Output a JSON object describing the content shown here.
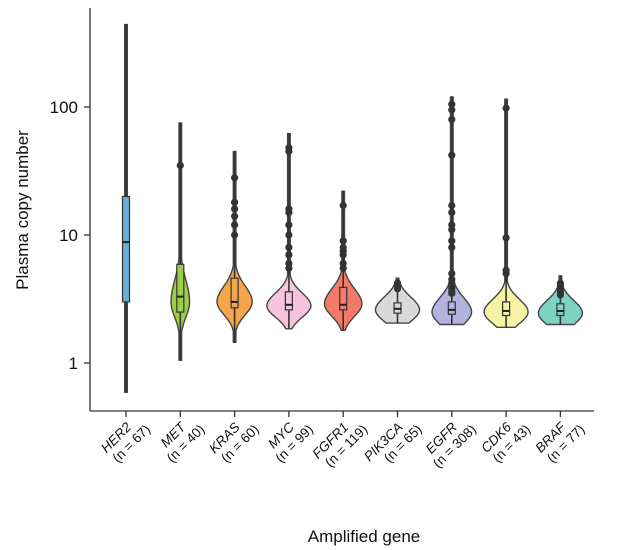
{
  "chart_data": {
    "type": "violin",
    "title": "",
    "xlabel": "Amplified gene",
    "ylabel": "Plasma copy number",
    "yscale": "log",
    "ylim": [
      0.45,
      900
    ],
    "yticks": [
      1,
      10,
      100
    ],
    "ytick_labels": [
      "1",
      "10",
      "100"
    ],
    "grid": false,
    "legend": "none",
    "categories": [
      {
        "gene": "HER2",
        "n_label": "(n = 67)",
        "color": "#6aaed6",
        "min": 0.59,
        "q1": 3.0,
        "median": 8.8,
        "q3": 20.0,
        "max": 440,
        "whisker_lo": 2.2,
        "mode": 6.0,
        "width": 0.15,
        "outliers": []
      },
      {
        "gene": "MET",
        "n_label": "(n = 40)",
        "color": "#9ccf46",
        "min": 1.05,
        "q1": 2.5,
        "median": 3.3,
        "q3": 5.9,
        "max": 75,
        "whisker_lo": 2.0,
        "mode": 3.0,
        "width": 0.42,
        "outliers": [
          35
        ]
      },
      {
        "gene": "KRAS",
        "n_label": "(n = 60)",
        "color": "#f5a54a",
        "min": 1.45,
        "q1": 2.7,
        "median": 3.0,
        "q3": 4.6,
        "max": 45,
        "whisker_lo": 2.1,
        "mode": 3.0,
        "width": 0.8,
        "outliers": [
          28,
          18,
          16,
          14,
          12,
          10
        ]
      },
      {
        "gene": "MYC",
        "n_label": "(n = 99)",
        "color": "#f7c3df",
        "min": 1.85,
        "q1": 2.6,
        "median": 2.85,
        "q3": 3.6,
        "max": 62,
        "whisker_lo": 2.2,
        "mode": 2.8,
        "width": 1.0,
        "outliers": [
          48,
          45,
          16,
          15,
          12,
          10,
          8,
          7,
          6,
          5.5
        ]
      },
      {
        "gene": "FGFR1",
        "n_label": "(n = 119)",
        "color": "#f47a6a",
        "min": 1.8,
        "q1": 2.6,
        "median": 2.85,
        "q3": 3.9,
        "max": 22,
        "whisker_lo": 2.1,
        "mode": 2.9,
        "width": 0.85,
        "outliers": [
          17,
          9,
          8,
          7.5,
          7,
          6,
          5.5
        ]
      },
      {
        "gene": "PIK3CA",
        "n_label": "(n = 65)",
        "color": "#d9d9d9",
        "min": 2.05,
        "q1": 2.45,
        "median": 2.65,
        "q3": 2.95,
        "max": 4.6,
        "whisker_lo": 2.2,
        "mode": 2.6,
        "width": 1.0,
        "outliers": [
          4.2,
          4.0,
          3.8
        ]
      },
      {
        "gene": "EGFR",
        "n_label": "(n = 308)",
        "color": "#b4b2de",
        "min": 2.0,
        "q1": 2.4,
        "median": 2.6,
        "q3": 3.0,
        "max": 120,
        "whisker_lo": 2.15,
        "mode": 2.5,
        "width": 0.9,
        "outliers": [
          105,
          95,
          80,
          42,
          17,
          15,
          12,
          11,
          9,
          8,
          5,
          4.5,
          4.2,
          4.0,
          3.8,
          3.6,
          3.5
        ]
      },
      {
        "gene": "CDK6",
        "n_label": "(n = 43)",
        "color": "#f6f3a4",
        "min": 1.9,
        "q1": 2.35,
        "median": 2.55,
        "q3": 3.0,
        "max": 115,
        "whisker_lo": 2.1,
        "mode": 2.5,
        "width": 1.0,
        "outliers": [
          98,
          9.5,
          5.3,
          5.0
        ]
      },
      {
        "gene": "BRAF",
        "n_label": "(n = 77)",
        "color": "#7fd3c2",
        "min": 2.0,
        "q1": 2.35,
        "median": 2.55,
        "q3": 2.9,
        "max": 4.8,
        "whisker_lo": 2.15,
        "mode": 2.45,
        "width": 1.0,
        "outliers": [
          4.2,
          4.0,
          3.8,
          3.6,
          3.4
        ]
      }
    ]
  }
}
